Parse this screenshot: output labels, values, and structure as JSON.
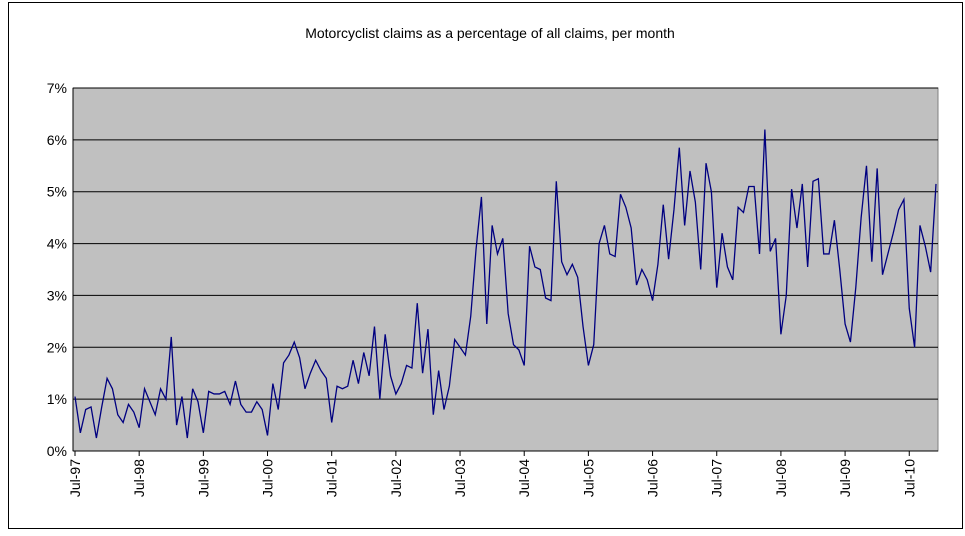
{
  "chart_data": {
    "type": "line",
    "title": "Motorcyclist claims as a percentage of all claims, per month",
    "categories": [
      "Jul-97",
      null,
      null,
      null,
      null,
      null,
      null,
      null,
      null,
      null,
      null,
      null,
      "Jul-98",
      null,
      null,
      null,
      null,
      null,
      null,
      null,
      null,
      null,
      null,
      null,
      "Jul-99",
      null,
      null,
      null,
      null,
      null,
      null,
      null,
      null,
      null,
      null,
      null,
      "Jul-00",
      null,
      null,
      null,
      null,
      null,
      null,
      null,
      null,
      null,
      null,
      null,
      "Jul-01",
      null,
      null,
      null,
      null,
      null,
      null,
      null,
      null,
      null,
      null,
      null,
      "Jul-02",
      null,
      null,
      null,
      null,
      null,
      null,
      null,
      null,
      null,
      null,
      null,
      "Jul-03",
      null,
      null,
      null,
      null,
      null,
      null,
      null,
      null,
      null,
      null,
      null,
      "Jul-04",
      null,
      null,
      null,
      null,
      null,
      null,
      null,
      null,
      null,
      null,
      null,
      "Jul-05",
      null,
      null,
      null,
      null,
      null,
      null,
      null,
      null,
      null,
      null,
      null,
      "Jul-06",
      null,
      null,
      null,
      null,
      null,
      null,
      null,
      null,
      null,
      null,
      null,
      "Jul-07",
      null,
      null,
      null,
      null,
      null,
      null,
      null,
      null,
      null,
      null,
      null,
      "Jul-08",
      null,
      null,
      null,
      null,
      null,
      null,
      null,
      null,
      null,
      null,
      null,
      "Jul-09",
      null,
      null,
      null,
      null,
      null,
      null,
      null,
      null,
      null,
      null,
      null,
      "Jul-10",
      null,
      null,
      null,
      null,
      null
    ],
    "values": [
      1.05,
      0.35,
      0.8,
      0.85,
      0.25,
      0.85,
      1.4,
      1.2,
      0.7,
      0.55,
      0.9,
      0.75,
      0.45,
      1.2,
      0.95,
      0.7,
      1.2,
      1.0,
      2.2,
      0.5,
      1.05,
      0.25,
      1.2,
      0.95,
      0.35,
      1.15,
      1.1,
      1.1,
      1.15,
      0.9,
      1.35,
      0.9,
      0.75,
      0.75,
      0.95,
      0.8,
      0.3,
      1.3,
      0.8,
      1.7,
      1.85,
      2.1,
      1.8,
      1.2,
      1.5,
      1.75,
      1.55,
      1.4,
      0.55,
      1.25,
      1.2,
      1.25,
      1.75,
      1.3,
      1.9,
      1.45,
      2.4,
      1.0,
      2.25,
      1.45,
      1.1,
      1.3,
      1.65,
      1.6,
      2.85,
      1.5,
      2.35,
      0.7,
      1.55,
      0.8,
      1.25,
      2.15,
      2.0,
      1.85,
      2.6,
      3.9,
      4.9,
      2.45,
      4.35,
      3.8,
      4.1,
      2.65,
      2.05,
      1.95,
      1.65,
      3.95,
      3.55,
      3.5,
      2.95,
      2.9,
      5.2,
      3.65,
      3.4,
      3.6,
      3.35,
      2.4,
      1.65,
      2.05,
      4.0,
      4.35,
      3.8,
      3.75,
      4.95,
      4.7,
      4.3,
      3.2,
      3.5,
      3.3,
      2.9,
      3.6,
      4.75,
      3.7,
      4.65,
      5.85,
      4.35,
      5.4,
      4.8,
      3.5,
      5.55,
      5.0,
      3.15,
      4.2,
      3.55,
      3.3,
      4.7,
      4.6,
      5.1,
      5.1,
      3.8,
      6.2,
      3.85,
      4.1,
      2.25,
      3.0,
      5.05,
      4.3,
      5.15,
      3.55,
      5.2,
      5.25,
      3.8,
      3.8,
      4.45,
      3.5,
      2.45,
      2.1,
      3.15,
      4.5,
      5.5,
      3.65,
      5.45,
      3.4,
      3.8,
      4.2,
      4.65,
      4.85,
      2.75,
      2.0,
      4.35,
      3.95,
      3.45,
      5.15
    ],
    "color": "#000080",
    "ylim": [
      0,
      7
    ],
    "yticks": [
      {
        "value": 0,
        "label": "0%"
      },
      {
        "value": 1,
        "label": "1%"
      },
      {
        "value": 2,
        "label": "2%"
      },
      {
        "value": 3,
        "label": "3%"
      },
      {
        "value": 4,
        "label": "4%"
      },
      {
        "value": 5,
        "label": "5%"
      },
      {
        "value": 6,
        "label": "6%"
      },
      {
        "value": 7,
        "label": "7%"
      }
    ],
    "grid": true
  }
}
